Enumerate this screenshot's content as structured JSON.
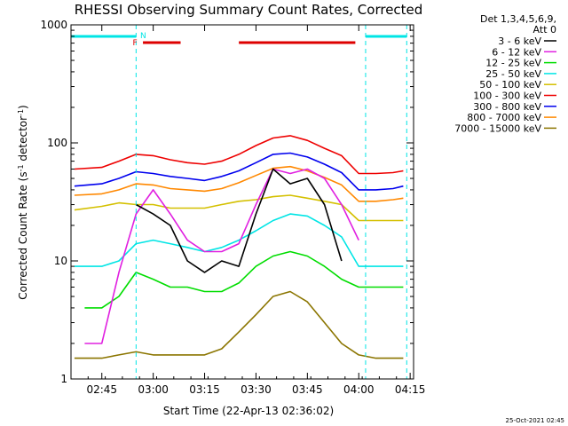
{
  "chart_data": {
    "type": "line",
    "title": "RHESSI Observing Summary Count Rates, Corrected",
    "xlabel": "Start Time (22-Apr-13 02:36:02)",
    "ylabel": "Corrected Count Rate (s⁻¹ detector⁻¹)",
    "ylabel_main": "Corrected Count Rate (s",
    "ylabel_sup1": "-1",
    "ylabel_mid": " detector",
    "ylabel_sup2": "-1",
    "ylabel_end": ")",
    "y_scale": "log",
    "ylim": [
      1,
      1000
    ],
    "xlim": [
      "02:36",
      "04:16"
    ],
    "x_ticks": [
      "02:45",
      "03:00",
      "03:15",
      "03:30",
      "03:45",
      "04:00",
      "04:15"
    ],
    "y_ticks": [
      "1",
      "10",
      "100",
      "1000"
    ],
    "legend_header": [
      "Det 1,3,4,5,6,9,",
      "Att 0"
    ],
    "legend_position": "right",
    "flags": {
      "night_label": "N",
      "flare_label": "F",
      "night_color": "#00e5e5",
      "flare_color": "#dd0000",
      "night_intervals": [
        [
          "02:36",
          "02:55"
        ],
        [
          "04:02",
          "04:14"
        ]
      ],
      "flare_intervals": [
        [
          "02:57",
          "03:08"
        ],
        [
          "03:25",
          "03:59"
        ]
      ],
      "boundaries": [
        "02:55",
        "04:02",
        "04:14"
      ]
    },
    "series": [
      {
        "name": "3 - 6 keV",
        "color": "#000000",
        "x": [
          "02:55",
          "03:00",
          "03:05",
          "03:10",
          "03:15",
          "03:20",
          "03:25",
          "03:30",
          "03:35",
          "03:40",
          "03:45",
          "03:50",
          "03:55"
        ],
        "values": [
          30,
          25,
          20,
          10,
          8,
          10,
          9,
          25,
          60,
          45,
          50,
          30,
          10
        ]
      },
      {
        "name": "6 - 12 keV",
        "color": "#e020e0",
        "x": [
          "02:40",
          "02:45",
          "02:50",
          "02:55",
          "03:00",
          "03:05",
          "03:10",
          "03:15",
          "03:20",
          "03:25",
          "03:30",
          "03:35",
          "03:40",
          "03:45",
          "03:50",
          "03:55",
          "04:00"
        ],
        "values": [
          2,
          2,
          8,
          25,
          40,
          25,
          15,
          12,
          12,
          14,
          30,
          60,
          55,
          60,
          50,
          30,
          15
        ]
      },
      {
        "name": "12 - 25 keV",
        "color": "#00dd00",
        "x": [
          "02:40",
          "02:45",
          "02:50",
          "02:55",
          "03:00",
          "03:05",
          "03:10",
          "03:15",
          "03:20",
          "03:25",
          "03:30",
          "03:35",
          "03:40",
          "03:45",
          "03:50",
          "03:55",
          "04:00",
          "04:05",
          "04:10",
          "04:13"
        ],
        "values": [
          4,
          4,
          5,
          8,
          7,
          6,
          6,
          5.5,
          5.5,
          6.5,
          9,
          11,
          12,
          11,
          9,
          7,
          6,
          6,
          6,
          6
        ]
      },
      {
        "name": "25 - 50 keV",
        "color": "#00e5e5",
        "x": [
          "02:37",
          "02:45",
          "02:50",
          "02:55",
          "03:00",
          "03:05",
          "03:10",
          "03:15",
          "03:20",
          "03:25",
          "03:30",
          "03:35",
          "03:40",
          "03:45",
          "03:50",
          "03:55",
          "04:00",
          "04:05",
          "04:10",
          "04:13"
        ],
        "values": [
          9,
          9,
          10,
          14,
          15,
          14,
          13,
          12,
          13,
          15,
          18,
          22,
          25,
          24,
          20,
          16,
          9,
          9,
          9,
          9
        ]
      },
      {
        "name": "50 - 100 keV",
        "color": "#d4c000",
        "x": [
          "02:37",
          "02:45",
          "02:50",
          "02:55",
          "03:00",
          "03:05",
          "03:10",
          "03:15",
          "03:20",
          "03:25",
          "03:30",
          "03:35",
          "03:40",
          "03:45",
          "03:50",
          "03:55",
          "04:00",
          "04:05",
          "04:10",
          "04:13"
        ],
        "values": [
          27,
          29,
          31,
          30,
          30,
          28,
          28,
          28,
          30,
          32,
          33,
          35,
          36,
          34,
          32,
          30,
          22,
          22,
          22,
          22
        ]
      },
      {
        "name": "100 - 300 keV",
        "color": "#ee0000",
        "x": [
          "02:37",
          "02:45",
          "02:50",
          "02:55",
          "03:00",
          "03:05",
          "03:10",
          "03:15",
          "03:20",
          "03:25",
          "03:30",
          "03:35",
          "03:40",
          "03:45",
          "03:50",
          "03:55",
          "04:00",
          "04:05",
          "04:10",
          "04:13"
        ],
        "values": [
          60,
          62,
          70,
          80,
          78,
          72,
          68,
          66,
          70,
          80,
          95,
          110,
          115,
          105,
          90,
          78,
          55,
          55,
          56,
          58
        ]
      },
      {
        "name": "300 - 800 keV",
        "color": "#0000ee",
        "x": [
          "02:37",
          "02:45",
          "02:50",
          "02:55",
          "03:00",
          "03:05",
          "03:10",
          "03:15",
          "03:20",
          "03:25",
          "03:30",
          "03:35",
          "03:40",
          "03:45",
          "03:50",
          "03:55",
          "04:00",
          "04:05",
          "04:10",
          "04:13"
        ],
        "values": [
          43,
          45,
          50,
          57,
          55,
          52,
          50,
          48,
          52,
          58,
          68,
          80,
          82,
          76,
          66,
          56,
          40,
          40,
          41,
          43
        ]
      },
      {
        "name": "800 - 7000 keV",
        "color": "#ff8800",
        "x": [
          "02:37",
          "02:45",
          "02:50",
          "02:55",
          "03:00",
          "03:05",
          "03:10",
          "03:15",
          "03:20",
          "03:25",
          "03:30",
          "03:35",
          "03:40",
          "03:45",
          "03:50",
          "03:55",
          "04:00",
          "04:05",
          "04:10",
          "04:13"
        ],
        "values": [
          36,
          37,
          40,
          45,
          44,
          41,
          40,
          39,
          41,
          46,
          53,
          61,
          63,
          58,
          51,
          44,
          32,
          32,
          33,
          34
        ]
      },
      {
        "name": "7000 - 15000 keV",
        "color": "#8b7500",
        "x": [
          "02:37",
          "02:45",
          "02:50",
          "02:55",
          "03:00",
          "03:05",
          "03:10",
          "03:15",
          "03:20",
          "03:25",
          "03:30",
          "03:35",
          "03:40",
          "03:45",
          "03:50",
          "03:55",
          "04:00",
          "04:05",
          "04:10",
          "04:13"
        ],
        "values": [
          1.5,
          1.5,
          1.6,
          1.7,
          1.6,
          1.6,
          1.6,
          1.6,
          1.8,
          2.5,
          3.5,
          5,
          5.5,
          4.5,
          3,
          2,
          1.6,
          1.5,
          1.5,
          1.5
        ]
      }
    ]
  },
  "footer": {
    "timestamp": "25-Oct-2021 02:45"
  }
}
